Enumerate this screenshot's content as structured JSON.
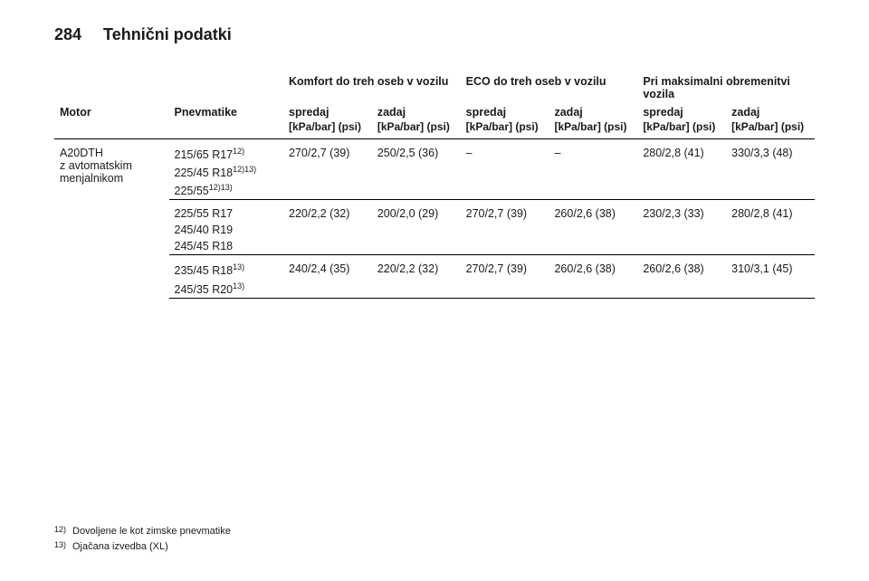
{
  "page_number": "284",
  "section_title": "Tehnični podatki",
  "headers": {
    "motor": "Motor",
    "tyres": "Pnevmatike",
    "group_comfort": "Komfort do treh oseb v vozilu",
    "group_eco": "ECO do treh oseb v vozilu",
    "group_full": "Pri maksimalni obremenitvi vozila",
    "front": "spredaj",
    "rear": "zadaj",
    "unit": "[kPa/bar] (psi)"
  },
  "engine": {
    "name": "A20DTH",
    "sub": "z avtomatskim menjalnikom"
  },
  "tyre_block_1": {
    "t1": "215/65 R17",
    "t1_sup": "12)",
    "t2": "225/45 R18",
    "t2_sup": "12)13)",
    "t3": "225/55",
    "t3_sup": "12)13)"
  },
  "tyre_block_2": {
    "t1": "225/55 R17",
    "t2": "245/40 R19",
    "t3": "245/45 R18"
  },
  "tyre_block_3": {
    "t1": "235/45 R18",
    "t1_sup": "13)",
    "t2": "245/35 R20",
    "t2_sup": "13)"
  },
  "row1": {
    "cf": "270/2,7 (39)",
    "cr": "250/2,5 (36)",
    "ef": "–",
    "er": "–",
    "ff": "280/2,8 (41)",
    "fr": "330/3,3 (48)"
  },
  "row2": {
    "cf": "220/2,2 (32)",
    "cr": "200/2,0 (29)",
    "ef": "270/2,7 (39)",
    "er": "260/2,6 (38)",
    "ff": "230/2,3 (33)",
    "fr": "280/2,8 (41)"
  },
  "row3": {
    "cf": "240/2,4 (35)",
    "cr": "220/2,2 (32)",
    "ef": "270/2,7 (39)",
    "er": "260/2,6 (38)",
    "ff": "260/2,6 (38)",
    "fr": "310/3,1 (45)"
  },
  "footnotes": {
    "f12_mark": "12)",
    "f12_text": "Dovoljene le kot zimske pnevmatike",
    "f13_mark": "13)",
    "f13_text": "Ojačana izvedba (XL)"
  }
}
